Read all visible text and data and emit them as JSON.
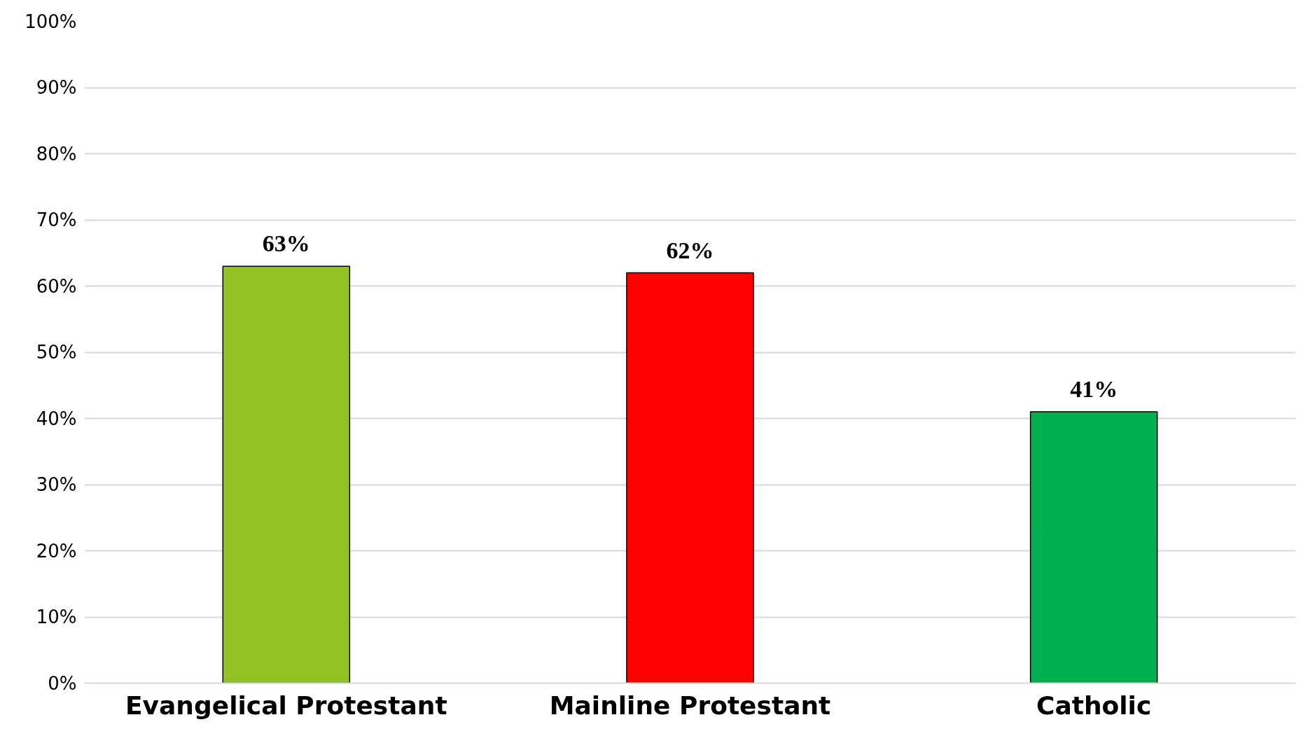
{
  "chart_data": {
    "type": "bar",
    "categories": [
      "Evangelical Protestant",
      "Mainline Protestant",
      "Catholic"
    ],
    "values": [
      63,
      62,
      41
    ],
    "colors": [
      "#92c123",
      "#ff0000",
      "#00b050"
    ],
    "value_labels": [
      "63%",
      "62%",
      "41%"
    ],
    "ylim": [
      0,
      100
    ],
    "yticks": [
      {
        "value": 0,
        "label": "0%"
      },
      {
        "value": 10,
        "label": "10%"
      },
      {
        "value": 20,
        "label": "20%"
      },
      {
        "value": 30,
        "label": "30%"
      },
      {
        "value": 40,
        "label": "40%"
      },
      {
        "value": 50,
        "label": "50%"
      },
      {
        "value": 60,
        "label": "60%"
      },
      {
        "value": 70,
        "label": "70%"
      },
      {
        "value": 80,
        "label": "80%"
      },
      {
        "value": 90,
        "label": "90%"
      },
      {
        "value": 100,
        "label": "100%"
      }
    ],
    "grid": "y"
  }
}
